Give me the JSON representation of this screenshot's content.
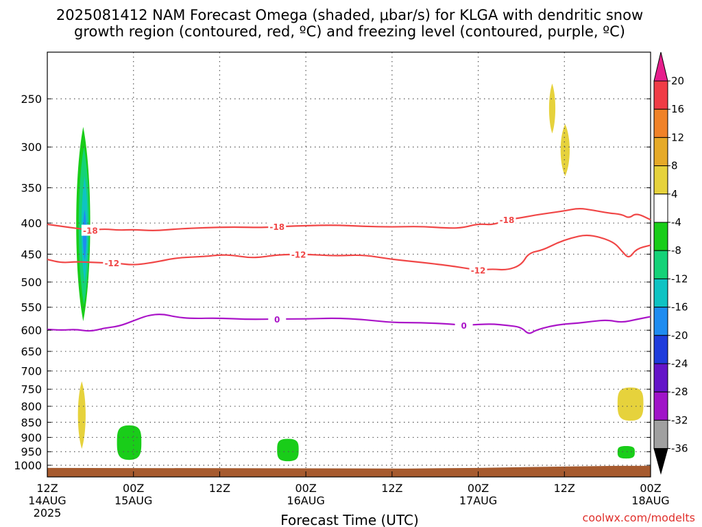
{
  "title_line1": "2025081412 NAM Forecast Omega (shaded, μbar/s) for KLGA with dendritic snow",
  "title_line2": "growth region (contoured, red, ºC) and freezing level (contoured, purple, ºC)",
  "credit": "coolwx.com/modelts",
  "chart_data": {
    "type": "time-height",
    "xlabel": "Forecast Time (UTC)",
    "ylabel": "",
    "y_scale": "pressure (log-p, inverted)",
    "x_range_hours": [
      0,
      84
    ],
    "y_ticks": [
      250,
      300,
      350,
      400,
      450,
      500,
      550,
      600,
      650,
      700,
      750,
      800,
      850,
      900,
      950,
      1000
    ],
    "x_ticks": [
      {
        "hour": 0,
        "lines": [
          "12Z",
          "14AUG",
          "2025"
        ]
      },
      {
        "hour": 12,
        "lines": [
          "00Z",
          "15AUG"
        ]
      },
      {
        "hour": 24,
        "lines": [
          "12Z"
        ]
      },
      {
        "hour": 36,
        "lines": [
          "00Z",
          "16AUG"
        ]
      },
      {
        "hour": 48,
        "lines": [
          "12Z"
        ]
      },
      {
        "hour": 60,
        "lines": [
          "00Z",
          "17AUG"
        ]
      },
      {
        "hour": 72,
        "lines": [
          "12Z"
        ]
      },
      {
        "hour": 84,
        "lines": [
          "00Z",
          "18AUG"
        ]
      }
    ],
    "grid": true,
    "colorbar": {
      "label_values": [
        "20",
        "16",
        "12",
        "8",
        "4",
        "-4",
        "-8",
        "-12",
        "-16",
        "-20",
        "-24",
        "-28",
        "-32",
        "-36"
      ],
      "colors_top_to_bottom": [
        "#f03c46",
        "#f08228",
        "#e6aa28",
        "#e6d23c",
        "#ffffff",
        "#19cd19",
        "#14d278",
        "#0fc3c3",
        "#1e8cf0",
        "#1e3cdc",
        "#6414c8",
        "#a014c8",
        "#a0a0a0"
      ],
      "top_arrow_color": "#e61e8c",
      "bottom_arrow_color": "#000000"
    },
    "temperature_contours": [
      {
        "label": "-18",
        "color": "#f04646",
        "points": [
          [
            0,
            402
          ],
          [
            2,
            405
          ],
          [
            4,
            408
          ],
          [
            6,
            411
          ],
          [
            8,
            409
          ],
          [
            10,
            411
          ],
          [
            12,
            410
          ],
          [
            15,
            412
          ],
          [
            18,
            409
          ],
          [
            22,
            407
          ],
          [
            26,
            406
          ],
          [
            30,
            407
          ],
          [
            33,
            405
          ],
          [
            36,
            404
          ],
          [
            40,
            403
          ],
          [
            44,
            405
          ],
          [
            48,
            406
          ],
          [
            52,
            405
          ],
          [
            56,
            408
          ],
          [
            58,
            407
          ],
          [
            60,
            401
          ],
          [
            62,
            403
          ],
          [
            64,
            395
          ],
          [
            66,
            392
          ],
          [
            68,
            388
          ],
          [
            70,
            385
          ],
          [
            72,
            382
          ],
          [
            74,
            378
          ],
          [
            76,
            381
          ],
          [
            78,
            385
          ],
          [
            80,
            387
          ],
          [
            81,
            393
          ],
          [
            82,
            385
          ],
          [
            84,
            395
          ]
        ]
      },
      {
        "label": "-12",
        "color": "#f04646",
        "points": [
          [
            0,
            459
          ],
          [
            2,
            465
          ],
          [
            4,
            463
          ],
          [
            6,
            464
          ],
          [
            8,
            465
          ],
          [
            10,
            466
          ],
          [
            12,
            469
          ],
          [
            15,
            464
          ],
          [
            18,
            456
          ],
          [
            22,
            454
          ],
          [
            24,
            451
          ],
          [
            26,
            452
          ],
          [
            28,
            456
          ],
          [
            30,
            455
          ],
          [
            32,
            451
          ],
          [
            36,
            450
          ],
          [
            40,
            453
          ],
          [
            44,
            451
          ],
          [
            48,
            459
          ],
          [
            52,
            464
          ],
          [
            56,
            470
          ],
          [
            58,
            474
          ],
          [
            60,
            478
          ],
          [
            62,
            476
          ],
          [
            64,
            478
          ],
          [
            66,
            469
          ],
          [
            67,
            448
          ],
          [
            69,
            443
          ],
          [
            71,
            431
          ],
          [
            73,
            423
          ],
          [
            75,
            418
          ],
          [
            77,
            422
          ],
          [
            79,
            431
          ],
          [
            80,
            445
          ],
          [
            81,
            458
          ],
          [
            82,
            441
          ],
          [
            84,
            435
          ]
        ]
      },
      {
        "label": "0",
        "color": "#aa14c8",
        "points": [
          [
            0,
            598
          ],
          [
            2,
            600
          ],
          [
            4,
            598
          ],
          [
            6,
            603
          ],
          [
            8,
            595
          ],
          [
            10,
            591
          ],
          [
            12,
            579
          ],
          [
            14,
            567
          ],
          [
            16,
            564
          ],
          [
            18,
            571
          ],
          [
            20,
            574
          ],
          [
            24,
            573
          ],
          [
            28,
            576
          ],
          [
            32,
            575
          ],
          [
            36,
            575
          ],
          [
            40,
            573
          ],
          [
            44,
            576
          ],
          [
            48,
            583
          ],
          [
            52,
            583
          ],
          [
            56,
            586
          ],
          [
            58,
            589
          ],
          [
            60,
            587
          ],
          [
            62,
            586
          ],
          [
            64,
            589
          ],
          [
            66,
            593
          ],
          [
            67,
            610
          ],
          [
            68,
            600
          ],
          [
            70,
            591
          ],
          [
            72,
            586
          ],
          [
            74,
            584
          ],
          [
            76,
            580
          ],
          [
            78,
            577
          ],
          [
            80,
            583
          ],
          [
            82,
            576
          ],
          [
            84,
            570
          ]
        ]
      }
    ],
    "omega_regions": [
      {
        "color": "#19cd19",
        "center_hour": 5.0,
        "p_top": 278,
        "p_bottom": 580,
        "half_width_hours": 1.0
      },
      {
        "color": "#14d278",
        "center_hour": 5.1,
        "p_top": 300,
        "p_bottom": 545,
        "half_width_hours": 0.75
      },
      {
        "color": "#0fc3c3",
        "center_hour": 5.2,
        "p_top": 335,
        "p_bottom": 500,
        "half_width_hours": 0.45
      },
      {
        "color": "#1e8cf0",
        "center_hour": 5.2,
        "p_top": 380,
        "p_bottom": 460,
        "half_width_hours": 0.25
      },
      {
        "color": "#e6d23c",
        "center_hour": 4.8,
        "p_top": 728,
        "p_bottom": 940,
        "half_width_hours": 0.55
      },
      {
        "color": "#19cd19",
        "center_hour": 11.4,
        "p_top": 860,
        "p_bottom": 980,
        "half_width_hours": 1.7
      },
      {
        "color": "#19cd19",
        "center_hour": 33.5,
        "p_top": 905,
        "p_bottom": 985,
        "half_width_hours": 1.5
      },
      {
        "color": "#e6d23c",
        "center_hour": 70.3,
        "p_top": 236,
        "p_bottom": 285,
        "half_width_hours": 0.45
      },
      {
        "color": "#e6d23c",
        "center_hour": 72.1,
        "p_top": 275,
        "p_bottom": 335,
        "half_width_hours": 0.65
      },
      {
        "color": "#e6d23c",
        "center_hour": 81.2,
        "p_top": 745,
        "p_bottom": 845,
        "half_width_hours": 1.8
      },
      {
        "color": "#19cd19",
        "center_hour": 80.6,
        "p_top": 930,
        "p_bottom": 975,
        "half_width_hours": 1.2
      }
    ],
    "terrain": {
      "color": "#a65a2e",
      "p_level": 1010
    }
  }
}
